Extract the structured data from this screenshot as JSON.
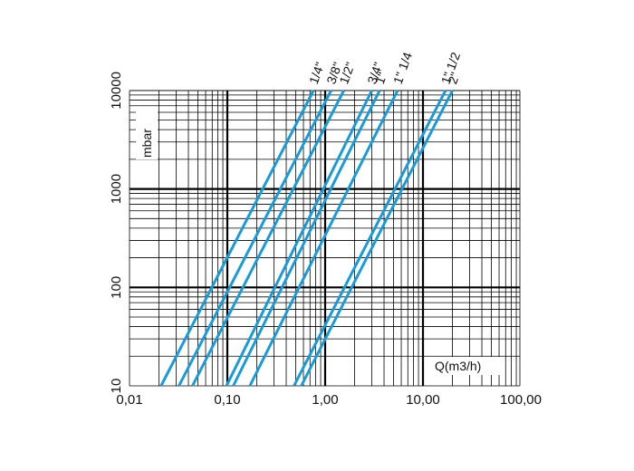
{
  "chart_data": {
    "type": "line",
    "title": "",
    "xlabel": "Q(m3/h)",
    "ylabel": "mbar",
    "x_scale": "log",
    "y_scale": "log",
    "xlim": [
      0.01,
      120
    ],
    "ylim": [
      10,
      12000
    ],
    "grid": true,
    "legend": "labels at top end of each line",
    "line_color": "#1a9ad6",
    "x_ticks": [
      {
        "value": 0.01,
        "label": "0,01"
      },
      {
        "value": 0.1,
        "label": "0,10"
      },
      {
        "value": 1,
        "label": "1,00"
      },
      {
        "value": 10,
        "label": "10,00"
      },
      {
        "value": 100,
        "label": "100,00"
      }
    ],
    "y_ticks": [
      {
        "value": 10,
        "label": "10"
      },
      {
        "value": 100,
        "label": "100"
      },
      {
        "value": 1000,
        "label": "1000"
      },
      {
        "value": 10000,
        "label": "10000"
      }
    ],
    "series": [
      {
        "name": "1/4\"",
        "x": [
          0.021,
          0.76
        ],
        "y": [
          10,
          10000
        ]
      },
      {
        "name": "3/8\"",
        "x": [
          0.032,
          1.15
        ],
        "y": [
          10,
          10000
        ]
      },
      {
        "name": "1/2\"",
        "x": [
          0.044,
          1.55
        ],
        "y": [
          10,
          10000
        ]
      },
      {
        "name": "3/4\"",
        "x": [
          0.098,
          3.0
        ],
        "y": [
          10,
          10000
        ]
      },
      {
        "name": "1\"",
        "x": [
          0.115,
          3.6
        ],
        "y": [
          10,
          10000
        ]
      },
      {
        "name": "1\" 1/4",
        "x": [
          0.17,
          5.5
        ],
        "y": [
          10,
          10000
        ]
      },
      {
        "name": "1\" 1/2",
        "x": [
          0.48,
          17.0
        ],
        "y": [
          10,
          10000
        ]
      },
      {
        "name": "2\"",
        "x": [
          0.57,
          20.0
        ],
        "y": [
          10,
          10000
        ]
      }
    ]
  }
}
